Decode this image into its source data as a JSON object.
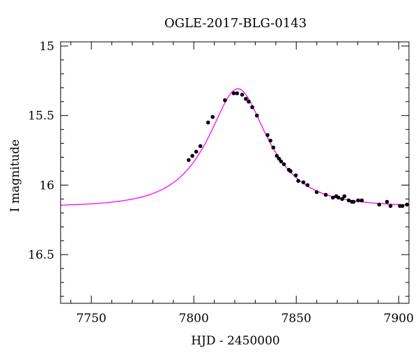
{
  "chart_data": {
    "type": "scatter",
    "title": "OGLE-2017-BLG-0143",
    "xlabel": "HJD - 2450000",
    "ylabel": "I magnitude",
    "xlim": [
      7735,
      7905
    ],
    "ylim": [
      16.85,
      14.97
    ],
    "y_inverted": true,
    "grid": false,
    "x_ticks_major": [
      7750,
      7800,
      7850,
      7900
    ],
    "x_ticks_minor_step": 10,
    "y_ticks_major": [
      15,
      15.5,
      16,
      16.5
    ],
    "y_ticks_minor_step": 0.1,
    "x_tick_labels": [
      "7750",
      "7800",
      "7850",
      "7900"
    ],
    "y_tick_labels": [
      "15",
      "15.5",
      "16",
      "16.5"
    ],
    "series": [
      {
        "kind": "points",
        "color": "#000000",
        "points": [
          [
            7797.5,
            15.82
          ],
          [
            7799.3,
            15.79
          ],
          [
            7801.2,
            15.76
          ],
          [
            7803.2,
            15.72
          ],
          [
            7807.0,
            15.55
          ],
          [
            7809.2,
            15.51
          ],
          [
            7815.2,
            15.39
          ],
          [
            7819.5,
            15.34
          ],
          [
            7821.1,
            15.34
          ],
          [
            7823.6,
            15.35
          ],
          [
            7825.4,
            15.38
          ],
          [
            7826.8,
            15.4
          ],
          [
            7828.5,
            15.44
          ],
          [
            7830.8,
            15.5
          ],
          [
            7836.0,
            15.64
          ],
          [
            7837.4,
            15.68
          ],
          [
            7838.8,
            15.73
          ],
          [
            7840.5,
            15.79
          ],
          [
            7841.6,
            15.81
          ],
          [
            7842.6,
            15.83
          ],
          [
            7844.0,
            15.85
          ],
          [
            7846.4,
            15.89
          ],
          [
            7847.2,
            15.9
          ],
          [
            7849.8,
            15.93
          ],
          [
            7851.0,
            15.97
          ],
          [
            7853.5,
            15.98
          ],
          [
            7855.5,
            16.0
          ],
          [
            7860.0,
            16.05
          ],
          [
            7864.4,
            16.07
          ],
          [
            7867.9,
            16.09
          ],
          [
            7869.5,
            16.08
          ],
          [
            7870.6,
            16.09
          ],
          [
            7872.4,
            16.1
          ],
          [
            7873.5,
            16.08
          ],
          [
            7875.6,
            16.11
          ],
          [
            7877.2,
            16.12
          ],
          [
            7878.0,
            16.12
          ],
          [
            7880.2,
            16.11
          ],
          [
            7882.0,
            16.11
          ],
          [
            7890.5,
            16.14
          ],
          [
            7894.3,
            16.12
          ],
          [
            7896.0,
            16.15
          ],
          [
            7900.6,
            16.15
          ],
          [
            7901.8,
            16.15
          ],
          [
            7904.0,
            16.14
          ]
        ]
      },
      {
        "kind": "line",
        "color": "#ff00ff",
        "model": {
          "t0": 7821.5,
          "u0": 0.5,
          "tE": 25,
          "base_mag": 16.155
        }
      }
    ]
  }
}
